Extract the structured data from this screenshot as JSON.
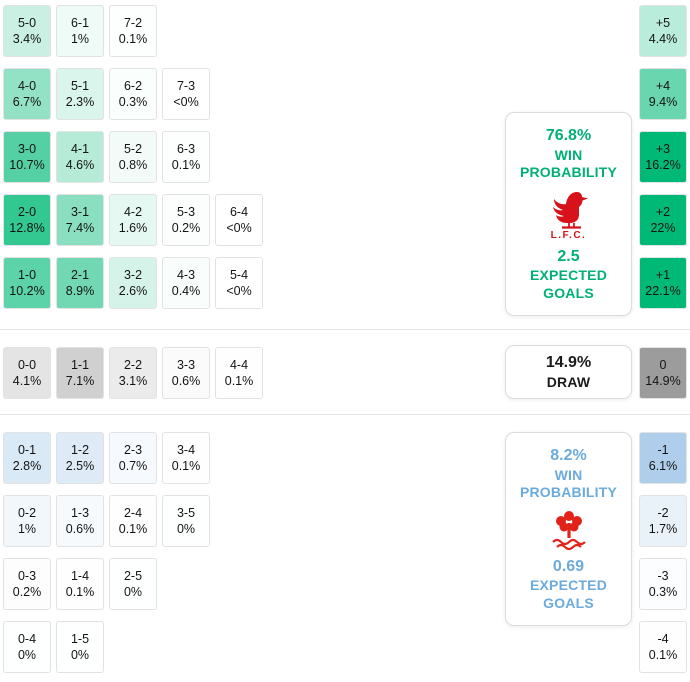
{
  "chart_data": {
    "type": "heatmap",
    "title": "Correct-score probability matrix with goal-margin distribution",
    "sections": {
      "home": {
        "rows": [
          [
            {
              "score": "5-0",
              "pct": "3.4%",
              "v": 3.4
            },
            {
              "score": "6-1",
              "pct": "1%",
              "v": 1
            },
            {
              "score": "7-2",
              "pct": "0.1%",
              "v": 0.1
            }
          ],
          [
            {
              "score": "4-0",
              "pct": "6.7%",
              "v": 6.7
            },
            {
              "score": "5-1",
              "pct": "2.3%",
              "v": 2.3
            },
            {
              "score": "6-2",
              "pct": "0.3%",
              "v": 0.3
            },
            {
              "score": "7-3",
              "pct": "<0%",
              "v": 0.02
            }
          ],
          [
            {
              "score": "3-0",
              "pct": "10.7%",
              "v": 10.7
            },
            {
              "score": "4-1",
              "pct": "4.6%",
              "v": 4.6
            },
            {
              "score": "5-2",
              "pct": "0.8%",
              "v": 0.8
            },
            {
              "score": "6-3",
              "pct": "0.1%",
              "v": 0.1
            }
          ],
          [
            {
              "score": "2-0",
              "pct": "12.8%",
              "v": 12.8
            },
            {
              "score": "3-1",
              "pct": "7.4%",
              "v": 7.4
            },
            {
              "score": "4-2",
              "pct": "1.6%",
              "v": 1.6
            },
            {
              "score": "5-3",
              "pct": "0.2%",
              "v": 0.2
            },
            {
              "score": "6-4",
              "pct": "<0%",
              "v": 0.02
            }
          ],
          [
            {
              "score": "1-0",
              "pct": "10.2%",
              "v": 10.2
            },
            {
              "score": "2-1",
              "pct": "8.9%",
              "v": 8.9
            },
            {
              "score": "3-2",
              "pct": "2.6%",
              "v": 2.6
            },
            {
              "score": "4-3",
              "pct": "0.4%",
              "v": 0.4
            },
            {
              "score": "5-4",
              "pct": "<0%",
              "v": 0.02
            }
          ]
        ]
      },
      "draw": {
        "cells": [
          {
            "score": "0-0",
            "pct": "4.1%",
            "v": 4.1
          },
          {
            "score": "1-1",
            "pct": "7.1%",
            "v": 7.1
          },
          {
            "score": "2-2",
            "pct": "3.1%",
            "v": 3.1
          },
          {
            "score": "3-3",
            "pct": "0.6%",
            "v": 0.6
          },
          {
            "score": "4-4",
            "pct": "0.1%",
            "v": 0.1
          }
        ]
      },
      "away": {
        "rows": [
          [
            {
              "score": "0-1",
              "pct": "2.8%",
              "v": 2.8
            },
            {
              "score": "1-2",
              "pct": "2.5%",
              "v": 2.5
            },
            {
              "score": "2-3",
              "pct": "0.7%",
              "v": 0.7
            },
            {
              "score": "3-4",
              "pct": "0.1%",
              "v": 0.1
            }
          ],
          [
            {
              "score": "0-2",
              "pct": "1%",
              "v": 1
            },
            {
              "score": "1-3",
              "pct": "0.6%",
              "v": 0.6
            },
            {
              "score": "2-4",
              "pct": "0.1%",
              "v": 0.1
            },
            {
              "score": "3-5",
              "pct": "0%",
              "v": 0.02
            }
          ],
          [
            {
              "score": "0-3",
              "pct": "0.2%",
              "v": 0.2
            },
            {
              "score": "1-4",
              "pct": "0.1%",
              "v": 0.1
            },
            {
              "score": "2-5",
              "pct": "0%",
              "v": 0.02
            }
          ],
          [
            {
              "score": "0-4",
              "pct": "0%",
              "v": 0.02
            },
            {
              "score": "1-5",
              "pct": "0%",
              "v": 0.02
            }
          ]
        ]
      }
    },
    "margins": [
      {
        "label": "+5",
        "pct": "4.4%",
        "v": 4.4,
        "kind": "home"
      },
      {
        "label": "+4",
        "pct": "9.4%",
        "v": 9.4,
        "kind": "home"
      },
      {
        "label": "+3",
        "pct": "16.2%",
        "v": 16.2,
        "kind": "home"
      },
      {
        "label": "+2",
        "pct": "22%",
        "v": 22,
        "kind": "home"
      },
      {
        "label": "+1",
        "pct": "22.1%",
        "v": 22.1,
        "kind": "home"
      },
      {
        "label": "0",
        "pct": "14.9%",
        "v": 14.9,
        "kind": "draw"
      },
      {
        "label": "-1",
        "pct": "6.1%",
        "v": 6.1,
        "kind": "away"
      },
      {
        "label": "-2",
        "pct": "1.7%",
        "v": 1.7,
        "kind": "away"
      },
      {
        "label": "-3",
        "pct": "0.3%",
        "v": 0.3,
        "kind": "away"
      },
      {
        "label": "-4",
        "pct": "0.1%",
        "v": 0.1,
        "kind": "away"
      }
    ]
  },
  "panels": {
    "home": {
      "win_value": "76.8%",
      "win_label_line1": "WIN",
      "win_label_line2": "PROBABILITY",
      "crest_icon": "liverpool-crest",
      "crest_text": "L.F.C.",
      "xg_value": "2.5",
      "xg_label_line1": "EXPECTED",
      "xg_label_line2": "GOALS"
    },
    "draw": {
      "value": "14.9%",
      "label": "DRAW"
    },
    "away": {
      "win_value": "8.2%",
      "win_label_line1": "WIN",
      "win_label_line2": "PROBABILITY",
      "crest_icon": "nottingham-forest-crest",
      "xg_value": "0.69",
      "xg_label_line1": "EXPECTED",
      "xg_label_line2": "GOALS"
    }
  },
  "colors": {
    "home_accent": "#00b075",
    "draw_accent": "#1b1b1b",
    "away_accent": "#6babdd",
    "home_cell_base": "0,185,119",
    "draw_cell_base": "70,70,70",
    "away_cell_base": "96,158,216",
    "cell_border": "#e2e2e2",
    "panel_border": "#dcdcdc",
    "liverpool_red": "#d8121a",
    "forest_red": "#e2231a",
    "cell_text": "#141414"
  }
}
